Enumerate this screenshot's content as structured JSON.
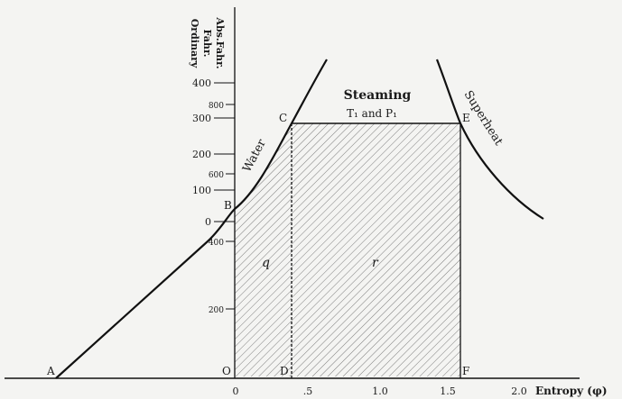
{
  "axes": {
    "y_titles": [
      "Ordinary",
      "Fahr.",
      "Abs.Fahr."
    ],
    "x_title": "Entropy (φ)",
    "ordinary_ticks": [
      "400",
      "300",
      "200",
      "100",
      "0"
    ],
    "absolute_ticks": [
      "800",
      "600",
      "400",
      "200"
    ],
    "x_ticks": [
      "0",
      ".5",
      "1.0",
      "1.5",
      "2.0"
    ]
  },
  "points": {
    "A": "A",
    "B": "B",
    "C": "C",
    "D": "D",
    "E": "E",
    "F": "F",
    "O": "O"
  },
  "curves": {
    "water": "Water",
    "superheat": "Superheat"
  },
  "regions": {
    "steaming": "Steaming",
    "t1p1": "T₁ and P₁",
    "q": "q",
    "r": "r"
  }
}
